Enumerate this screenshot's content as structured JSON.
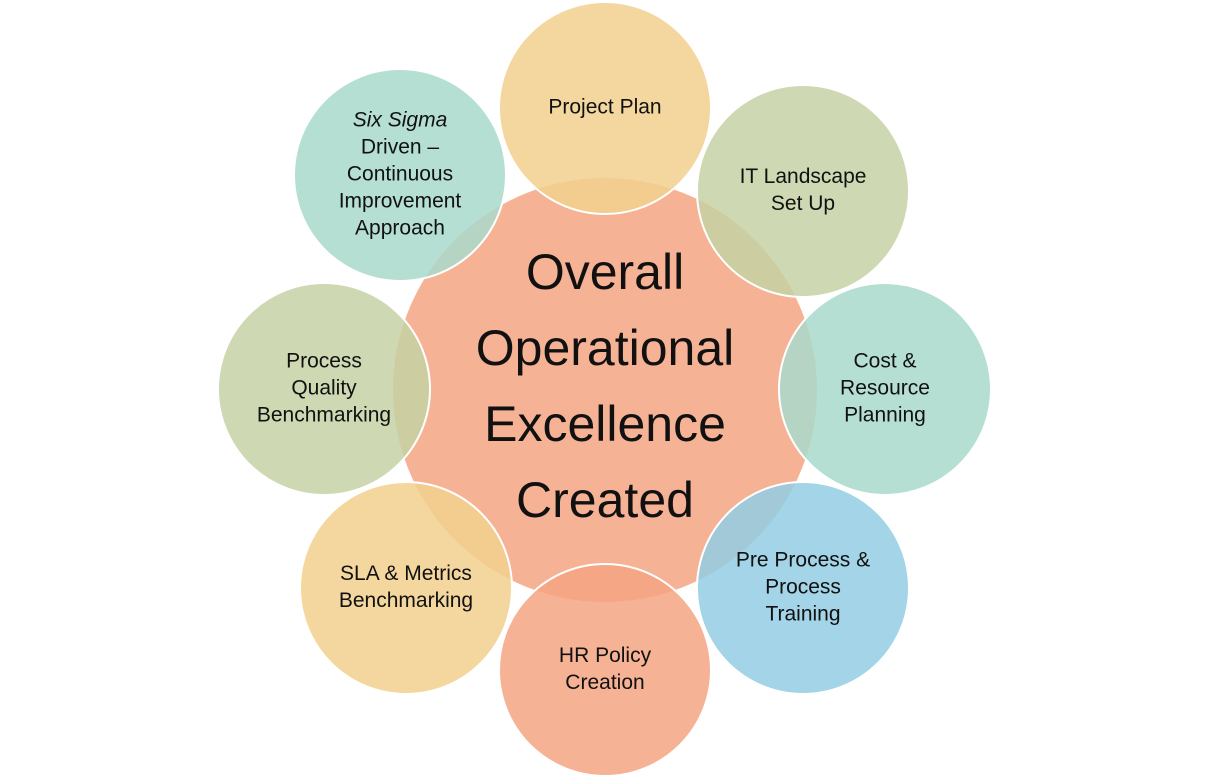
{
  "center": {
    "label": [
      "Overall",
      "Operational",
      "Excellence",
      "Created"
    ],
    "color": "#F4A582"
  },
  "nodes": [
    {
      "id": "project-plan",
      "lines": [
        "Project Plan"
      ],
      "color": "#F2D08E"
    },
    {
      "id": "it-landscape",
      "lines": [
        "IT Landscape",
        "Set Up"
      ],
      "color": "#C5D1A5"
    },
    {
      "id": "cost-resource",
      "lines": [
        "Cost &",
        "Resource",
        "Planning"
      ],
      "color": "#A9D9CB"
    },
    {
      "id": "pre-process",
      "lines": [
        "Pre Process &",
        "Process",
        "Training"
      ],
      "color": "#93CDE3"
    },
    {
      "id": "hr-policy",
      "lines": [
        "HR Policy",
        "Creation"
      ],
      "color": "#F4A582"
    },
    {
      "id": "sla-metrics",
      "lines": [
        "SLA & Metrics",
        "Benchmarking"
      ],
      "color": "#F2D08E"
    },
    {
      "id": "process-quality",
      "lines": [
        "Process",
        "Quality",
        "Benchmarking"
      ],
      "color": "#C5D1A5"
    },
    {
      "id": "six-sigma",
      "lines": [
        "Six Sigma",
        "Driven –",
        "Continuous",
        "Improvement",
        "Approach"
      ],
      "italic_first_line": true,
      "color": "#A9D9CB"
    }
  ]
}
